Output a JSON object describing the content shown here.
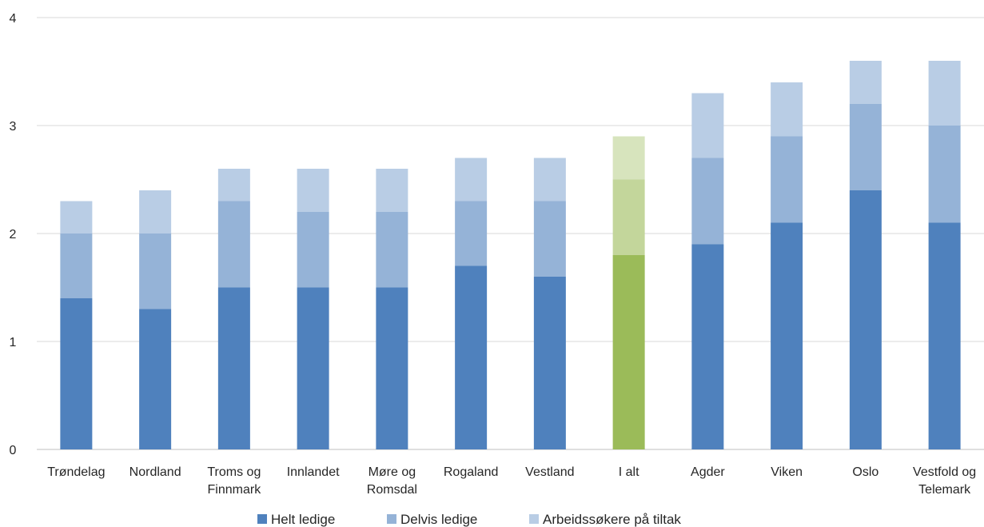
{
  "chart_data": {
    "type": "bar",
    "stacked": true,
    "title": "",
    "xlabel": "",
    "ylabel": "",
    "ylim": [
      0,
      4
    ],
    "yticks": [
      "0",
      "1",
      "2",
      "3",
      "4"
    ],
    "grid": true,
    "legend_position": "bottom",
    "categories": [
      [
        "Trøndelag"
      ],
      [
        "Nordland"
      ],
      [
        "Troms og",
        "Finnmark"
      ],
      [
        "Innlandet"
      ],
      [
        "Møre og",
        "Romsdal"
      ],
      [
        "Rogaland"
      ],
      [
        "Vestland"
      ],
      [
        "I alt"
      ],
      [
        "Agder"
      ],
      [
        "Viken"
      ],
      [
        "Oslo"
      ],
      [
        "Vestfold og",
        "Telemark"
      ]
    ],
    "highlight_index": 7,
    "series": [
      {
        "name": "Helt ledige",
        "color": "#4f81bd",
        "highlight_color": "#9bbb59",
        "values": [
          1.4,
          1.3,
          1.5,
          1.5,
          1.5,
          1.7,
          1.6,
          1.8,
          1.9,
          2.1,
          2.4,
          2.1
        ]
      },
      {
        "name": "Delvis ledige",
        "color": "#95b3d7",
        "highlight_color": "#c3d69b",
        "values": [
          0.6,
          0.7,
          0.8,
          0.7,
          0.7,
          0.6,
          0.7,
          0.7,
          0.8,
          0.8,
          0.8,
          0.9
        ]
      },
      {
        "name": "Arbeidssøkere på tiltak",
        "color": "#b9cde5",
        "highlight_color": "#d7e4bd",
        "values": [
          0.3,
          0.4,
          0.3,
          0.4,
          0.4,
          0.4,
          0.4,
          0.4,
          0.6,
          0.5,
          0.4,
          0.6
        ]
      }
    ]
  }
}
